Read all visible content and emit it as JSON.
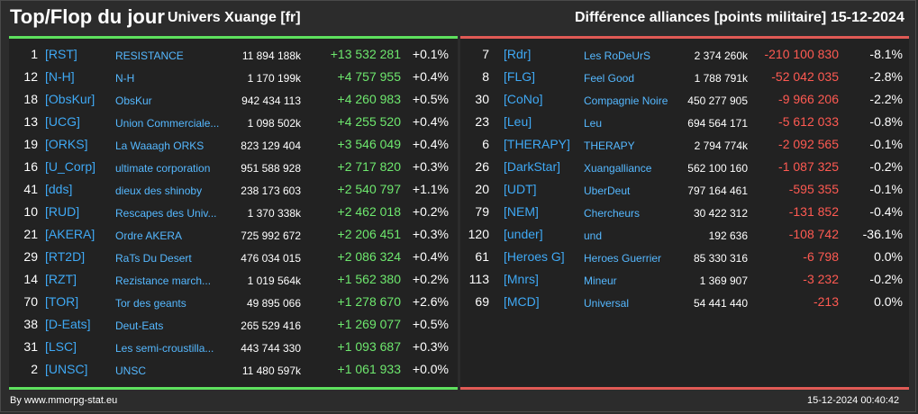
{
  "header": {
    "title": "Top/Flop du jour",
    "universe": "Univers Xuange [fr]",
    "category": "Différence alliances [points militaire]",
    "date": "15-12-2024"
  },
  "colors": {
    "gain": "#6ee86e",
    "loss": "#ff5a52",
    "tag": "#3fa9f5",
    "top_bar": "#5ee05e",
    "flop_bar": "#e05a55"
  },
  "top": [
    {
      "rank": "1",
      "tag": "[RST]",
      "name": "RESISTANCE",
      "points": "11 894 188k",
      "diff": "+13 532 281",
      "pct": "+0.1%"
    },
    {
      "rank": "12",
      "tag": "[N-H]",
      "name": "N-H",
      "points": "1 170 199k",
      "diff": "+4 757 955",
      "pct": "+0.4%"
    },
    {
      "rank": "18",
      "tag": "[ObsKur]",
      "name": "ObsKur",
      "points": "942 434 113",
      "diff": "+4 260 983",
      "pct": "+0.5%"
    },
    {
      "rank": "13",
      "tag": "[UCG]",
      "name": "Union Commerciale...",
      "points": "1 098 502k",
      "diff": "+4 255 520",
      "pct": "+0.4%"
    },
    {
      "rank": "19",
      "tag": "[ORKS]",
      "name": "La Waaagh ORKS",
      "points": "823 129 404",
      "diff": "+3 546 049",
      "pct": "+0.4%"
    },
    {
      "rank": "16",
      "tag": "[U_Corp]",
      "name": "ultimate corporation",
      "points": "951 588 928",
      "diff": "+2 717 820",
      "pct": "+0.3%"
    },
    {
      "rank": "41",
      "tag": "[dds]",
      "name": "dieux des shinoby",
      "points": "238 173 603",
      "diff": "+2 540 797",
      "pct": "+1.1%"
    },
    {
      "rank": "10",
      "tag": "[RUD]",
      "name": "Rescapes des Univ...",
      "points": "1 370 338k",
      "diff": "+2 462 018",
      "pct": "+0.2%"
    },
    {
      "rank": "21",
      "tag": "[AKERA]",
      "name": "Ordre AKERA",
      "points": "725 992 672",
      "diff": "+2 206 451",
      "pct": "+0.3%"
    },
    {
      "rank": "29",
      "tag": "[RT2D]",
      "name": "RaTs Du Desert",
      "points": "476 034 015",
      "diff": "+2 086 324",
      "pct": "+0.4%"
    },
    {
      "rank": "14",
      "tag": "[RZT]",
      "name": "Rezistance march...",
      "points": "1 019 564k",
      "diff": "+1 562 380",
      "pct": "+0.2%"
    },
    {
      "rank": "70",
      "tag": "[TOR]",
      "name": "Tor des geants",
      "points": "49 895 066",
      "diff": "+1 278 670",
      "pct": "+2.6%"
    },
    {
      "rank": "38",
      "tag": "[D-Eats]",
      "name": "Deut-Eats",
      "points": "265 529 416",
      "diff": "+1 269 077",
      "pct": "+0.5%"
    },
    {
      "rank": "31",
      "tag": "[LSC]",
      "name": "Les semi-croustilla...",
      "points": "443 744 330",
      "diff": "+1 093 687",
      "pct": "+0.3%"
    },
    {
      "rank": "2",
      "tag": "[UNSC]",
      "name": "UNSC",
      "points": "11 480 597k",
      "diff": "+1 061 933",
      "pct": "+0.0%"
    }
  ],
  "flop": [
    {
      "rank": "7",
      "tag": "[Rdr]",
      "name": "Les RoDeUrS",
      "points": "2 374 260k",
      "diff": "-210 100 830",
      "pct": "-8.1%"
    },
    {
      "rank": "8",
      "tag": "[FLG]",
      "name": "Feel Good",
      "points": "1 788 791k",
      "diff": "-52 042 035",
      "pct": "-2.8%"
    },
    {
      "rank": "30",
      "tag": "[CoNo]",
      "name": "Compagnie Noire",
      "points": "450 277 905",
      "diff": "-9 966 206",
      "pct": "-2.2%"
    },
    {
      "rank": "23",
      "tag": "[Leu]",
      "name": "Leu",
      "points": "694 564 171",
      "diff": "-5 612 033",
      "pct": "-0.8%"
    },
    {
      "rank": "6",
      "tag": "[THERAPY]",
      "name": "THERAPY",
      "points": "2 794 774k",
      "diff": "-2 092 565",
      "pct": "-0.1%"
    },
    {
      "rank": "26",
      "tag": "[DarkStar]",
      "name": "Xuangalliance",
      "points": "562 100 160",
      "diff": "-1 087 325",
      "pct": "-0.2%"
    },
    {
      "rank": "20",
      "tag": "[UDT]",
      "name": "UberDeut",
      "points": "797 164 461",
      "diff": "-595 355",
      "pct": "-0.1%"
    },
    {
      "rank": "79",
      "tag": "[NEM]",
      "name": "Chercheurs",
      "points": "30 422 312",
      "diff": "-131 852",
      "pct": "-0.4%"
    },
    {
      "rank": "120",
      "tag": "[under]",
      "name": "und",
      "points": "192 636",
      "diff": "-108 742",
      "pct": "-36.1%"
    },
    {
      "rank": "61",
      "tag": "[Heroes G]",
      "name": "Heroes Guerrier",
      "points": "85 330 316",
      "diff": "-6 798",
      "pct": "0.0%"
    },
    {
      "rank": "113",
      "tag": "[Mnrs]",
      "name": "Mineur",
      "points": "1 369 907",
      "diff": "-3 232",
      "pct": "-0.2%"
    },
    {
      "rank": "69",
      "tag": "[MCD]",
      "name": "Universal",
      "points": "54 441 440",
      "diff": "-213",
      "pct": "0.0%"
    }
  ],
  "footer": {
    "source": "By www.mmorpg-stat.eu",
    "timestamp": "15-12-2024 00:40:42"
  }
}
